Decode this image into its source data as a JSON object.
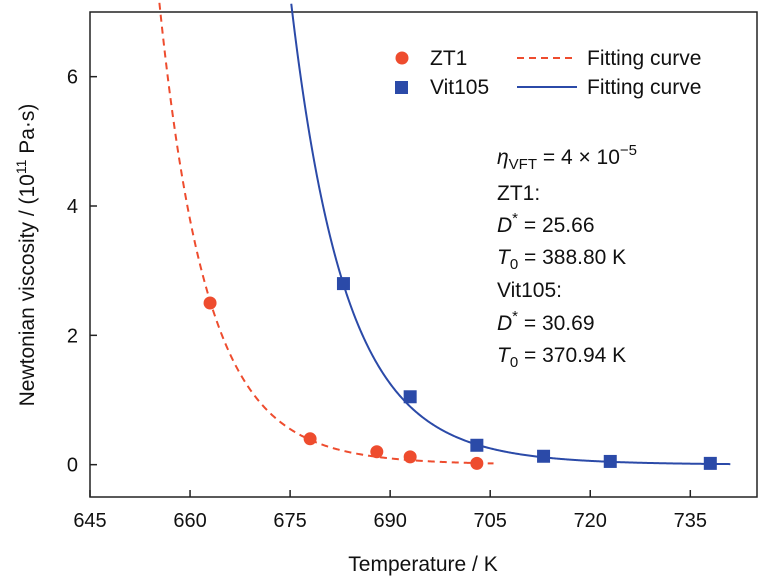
{
  "chart_data": {
    "type": "scatter",
    "title": "",
    "xlabel": "Temperature / K",
    "ylabel": "Newtonian viscosity / (10",
    "ylabel_sup": "11",
    "ylabel_suffix": " Pa·s)",
    "xlim": [
      645,
      745
    ],
    "ylim": [
      -0.5,
      7
    ],
    "x_ticks": [
      645,
      660,
      675,
      690,
      705,
      720,
      735
    ],
    "y_ticks": [
      0,
      2,
      4,
      6
    ],
    "grid": false,
    "legend_position": "top-right",
    "series": [
      {
        "name": "ZT1",
        "marker": "circle",
        "color": "#ee4c2e",
        "points": [
          {
            "x": 663,
            "y": 2.5
          },
          {
            "x": 678,
            "y": 0.4
          },
          {
            "x": 688,
            "y": 0.2
          },
          {
            "x": 693,
            "y": 0.12
          },
          {
            "x": 703,
            "y": 0.02
          }
        ]
      },
      {
        "name": "Vit105",
        "marker": "square",
        "color": "#2b4aa8",
        "points": [
          {
            "x": 683,
            "y": 2.8
          },
          {
            "x": 693,
            "y": 1.05
          },
          {
            "x": 703,
            "y": 0.3
          },
          {
            "x": 713,
            "y": 0.13
          },
          {
            "x": 723,
            "y": 0.05
          },
          {
            "x": 738,
            "y": 0.02
          }
        ]
      }
    ],
    "fits": [
      {
        "name": "Fitting curve",
        "for": "ZT1",
        "style": "dashed",
        "color": "#ee4c2e",
        "model": "VFT",
        "eta_scale": 4e-05,
        "D_star": 25.66,
        "T0": 388.8,
        "x_range": [
          655,
          705.5
        ]
      },
      {
        "name": "Fitting curve",
        "for": "Vit105",
        "style": "solid",
        "color": "#2b4aa8",
        "model": "VFT",
        "eta_scale": 4e-05,
        "D_star": 30.69,
        "T0": 370.94,
        "x_range": [
          672,
          741
        ]
      }
    ],
    "legend": [
      {
        "label": "ZT1",
        "kind": "marker-circle",
        "color": "#ee4c2e"
      },
      {
        "label": "Fitting curve",
        "kind": "line-dashed",
        "color": "#ee4c2e"
      },
      {
        "label": "Vit105",
        "kind": "marker-square",
        "color": "#2b4aa8"
      },
      {
        "label": "Fitting curve",
        "kind": "line-solid",
        "color": "#2b4aa8"
      }
    ],
    "annotation": {
      "eta_symbol": "η",
      "eta_sub": "VFT",
      "eta_value": " = 4 × 10",
      "eta_exp": "−5",
      "zt1_label": "ZT1:",
      "zt1_D_symbol": "D",
      "zt1_D_sup": "*",
      "zt1_D_value": " = 25.66",
      "zt1_T_symbol": "T",
      "zt1_T_sub": "0",
      "zt1_T_value": " = 388.80 K",
      "vit_label": "Vit105:",
      "vit_D_symbol": "D",
      "vit_D_sup": "*",
      "vit_D_value": " = 30.69",
      "vit_T_symbol": "T",
      "vit_T_sub": "0",
      "vit_T_value": " = 370.94 K"
    }
  }
}
